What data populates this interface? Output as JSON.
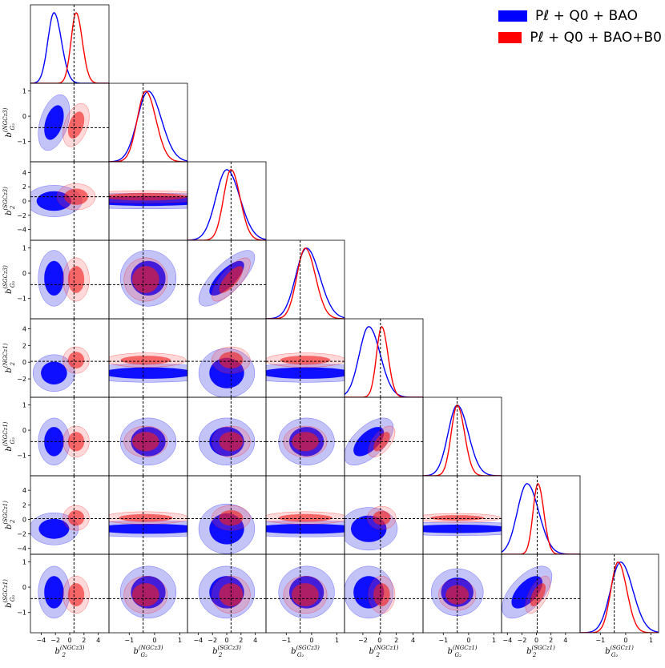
{
  "chart_data": {
    "type": "corner",
    "parameters": [
      {
        "name": "NGCz3 b2",
        "label_main": "b",
        "label_sub": "2",
        "label_sup": "(NGCz3)",
        "range": [
          -5.5,
          5.5
        ],
        "ticks": [
          -4,
          -2,
          0,
          2,
          4
        ],
        "fiducial": 0.6
      },
      {
        "name": "NGCz3 bG2",
        "label_main": "b",
        "label_sub": "G₂",
        "label_sup": "(NGCz3)",
        "range": [
          -1.8,
          1.3
        ],
        "ticks": [
          -1,
          0,
          1
        ],
        "fiducial": -0.45
      },
      {
        "name": "SGCz3 b2",
        "label_main": "b",
        "label_sub": "2",
        "label_sup": "(SGCz3)",
        "range": [
          -5.5,
          5.5
        ],
        "ticks": [
          -4,
          -2,
          0,
          2,
          4
        ],
        "fiducial": 0.6
      },
      {
        "name": "SGCz3 bG2",
        "label_main": "b",
        "label_sub": "G₂",
        "label_sup": "(SGCz3)",
        "range": [
          -1.8,
          1.3
        ],
        "ticks": [
          -1,
          0,
          1
        ],
        "fiducial": -0.45
      },
      {
        "name": "NGCz1 b2",
        "label_main": "b",
        "label_sub": "2",
        "label_sup": "(NGCz1)",
        "range": [
          -4.2,
          5.2
        ],
        "ticks": [
          -2,
          0,
          2,
          4
        ],
        "fiducial": 0.1
      },
      {
        "name": "NGCz1 bG2",
        "label_main": "b",
        "label_sub": "G₂",
        "label_sup": "(NGCz1)",
        "range": [
          -1.8,
          1.3
        ],
        "ticks": [
          -1,
          0,
          1
        ],
        "fiducial": -0.45
      },
      {
        "name": "SGCz1 b2",
        "label_main": "b",
        "label_sub": "2",
        "label_sup": "(SGCz1)",
        "range": [
          -4.8,
          6.0
        ],
        "ticks": [
          -4,
          -2,
          0,
          2,
          4
        ],
        "fiducial": 0.1
      },
      {
        "name": "SGCz1 bG2",
        "label_main": "b",
        "label_sub": "G₂",
        "label_sup": "(SGCz1)",
        "range": [
          -1.8,
          1.3
        ],
        "ticks": [
          -1,
          0,
          1
        ],
        "fiducial": -0.45
      }
    ],
    "series": [
      {
        "name": "P_ℓ + Q_0 + BAO",
        "color": "#0000ff",
        "means": [
          -2.2,
          -0.25,
          0.0,
          -0.2,
          -1.3,
          -0.45,
          -1.3,
          -0.2
        ],
        "sigmas": [
          0.9,
          0.45,
          1.6,
          0.45,
          1.2,
          0.38,
          1.4,
          0.42
        ]
      },
      {
        "name": "P_ℓ + Q_0 + BAO+B_0",
        "color": "#ff0000",
        "means": [
          0.9,
          -0.35,
          0.6,
          -0.25,
          0.25,
          -0.45,
          0.2,
          -0.3
        ],
        "sigmas": [
          0.75,
          0.35,
          1.1,
          0.35,
          0.65,
          0.25,
          0.7,
          0.3
        ]
      }
    ],
    "correlations": [
      {
        "i": 1,
        "j": 0,
        "rho": 0.4
      },
      {
        "i": 3,
        "j": 2,
        "rho": 0.75
      },
      {
        "i": 5,
        "j": 4,
        "rho": 0.6
      },
      {
        "i": 7,
        "j": 6,
        "rho": 0.6
      }
    ],
    "legend": {
      "position": "top-right",
      "entries": [
        {
          "text": "Pℓ + Q0 + BAO",
          "color": "#0000ff"
        },
        {
          "text": "Pℓ + Q0 + BAO+B0",
          "color": "#ff0000"
        }
      ]
    },
    "contour_levels": [
      "68%",
      "95%"
    ],
    "fiducial_line_style": "dashed black"
  }
}
